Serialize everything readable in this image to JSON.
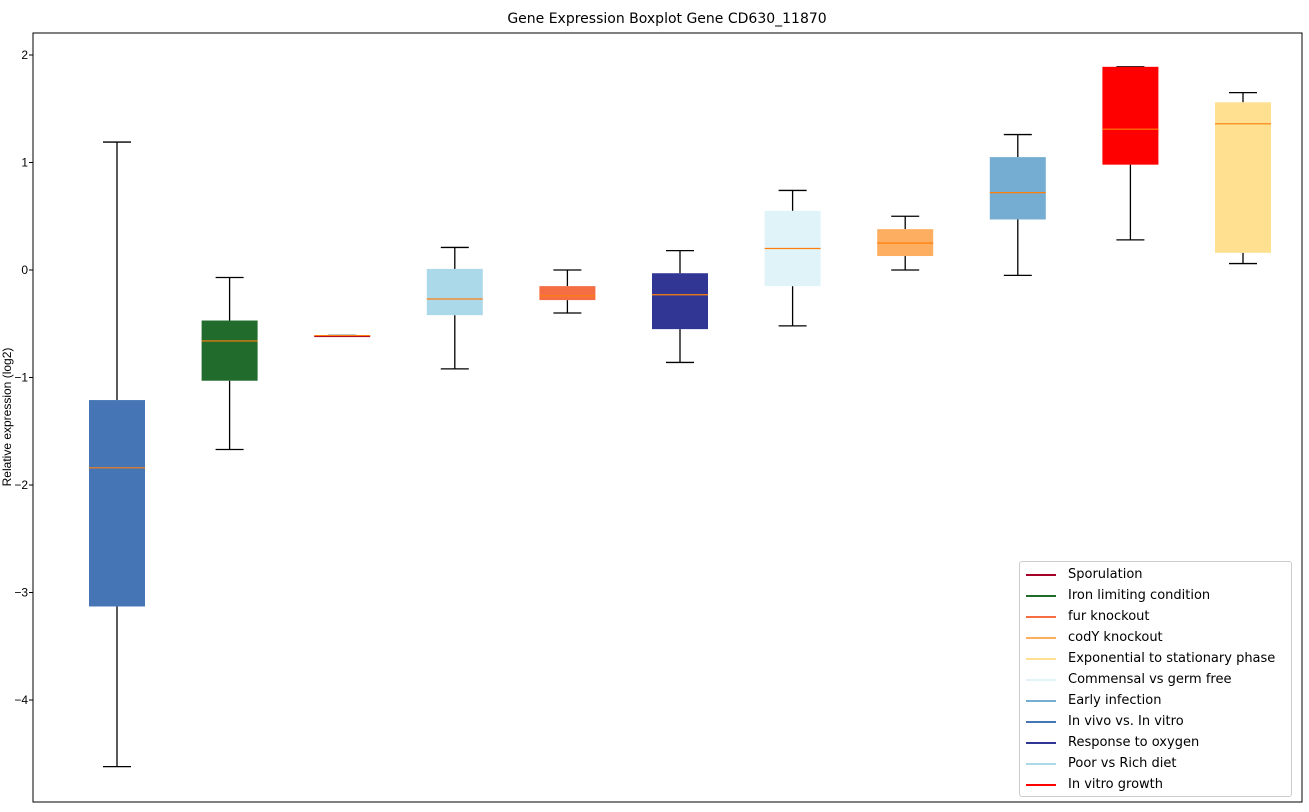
{
  "chart_data": {
    "type": "boxplot",
    "title": "Gene Expression Boxplot Gene CD630_11870",
    "xlabel": "",
    "ylabel": "Relative expression (log2)",
    "ylim": [
      -4.95,
      2.2
    ],
    "yticks": [
      2,
      1,
      0,
      -1,
      -2,
      -3,
      -4
    ],
    "ytick_labels": [
      "2",
      "1",
      "0",
      "−1",
      "−2",
      "−3",
      "−4"
    ],
    "grid": false,
    "legend_placement": "lower-right",
    "boxes": [
      {
        "name": "In vivo vs. In vitro",
        "color": "#4575b4",
        "min": -4.62,
        "q1": -3.13,
        "median": -1.84,
        "q3": -1.21,
        "max": 1.19
      },
      {
        "name": "Iron limiting condition",
        "color": "#216b2c",
        "min": -1.67,
        "q1": -1.03,
        "median": -0.66,
        "q3": -0.47,
        "max": -0.07
      },
      {
        "name": "Sporulation",
        "color": "#a50026",
        "min": -0.61,
        "q1": -0.61,
        "median": -0.61,
        "q3": -0.61,
        "max": -0.61
      },
      {
        "name": "Poor vs Rich diet",
        "color": "#abd9e9",
        "min": -0.92,
        "q1": -0.42,
        "median": -0.27,
        "q3": 0.01,
        "max": 0.21
      },
      {
        "name": "fur knockout",
        "color": "#f46d43",
        "min": -0.4,
        "q1": -0.28,
        "median": -0.24,
        "q3": -0.15,
        "max": 0.0
      },
      {
        "name": "Response to oxygen",
        "color": "#313695",
        "min": -0.86,
        "q1": -0.55,
        "median": -0.23,
        "q3": -0.03,
        "max": 0.18
      },
      {
        "name": "Commensal vs germ free",
        "color": "#e0f3f8",
        "min": -0.52,
        "q1": -0.15,
        "median": 0.2,
        "q3": 0.55,
        "max": 0.74
      },
      {
        "name": "codY knockout",
        "color": "#fdae61",
        "min": 0.0,
        "q1": 0.13,
        "median": 0.25,
        "q3": 0.38,
        "max": 0.5
      },
      {
        "name": "Early infection",
        "color": "#74add1",
        "min": -0.05,
        "q1": 0.47,
        "median": 0.72,
        "q3": 1.05,
        "max": 1.26
      },
      {
        "name": "In vitro growth",
        "color": "#ff0000",
        "min": 0.28,
        "q1": 0.98,
        "median": 1.31,
        "q3": 1.89,
        "max": 1.89
      },
      {
        "name": "Exponential to stationary phase",
        "color": "#fee090",
        "min": 0.06,
        "q1": 0.16,
        "median": 1.36,
        "q3": 1.56,
        "max": 1.65
      }
    ],
    "median_color": "#ff7f0e",
    "legend": [
      {
        "label": "Sporulation",
        "color": "#a50026"
      },
      {
        "label": "Iron limiting condition",
        "color": "#216b2c"
      },
      {
        "label": "fur knockout",
        "color": "#f46d43"
      },
      {
        "label": "codY knockout",
        "color": "#fdae61"
      },
      {
        "label": "Exponential to stationary phase",
        "color": "#fee090"
      },
      {
        "label": "Commensal vs germ free",
        "color": "#e0f3f8"
      },
      {
        "label": "Early infection",
        "color": "#74add1"
      },
      {
        "label": "In vivo vs. In vitro",
        "color": "#4575b4"
      },
      {
        "label": "Response to oxygen",
        "color": "#313695"
      },
      {
        "label": "Poor vs Rich diet",
        "color": "#abd9e9"
      },
      {
        "label": "In vitro growth",
        "color": "#ff0000"
      }
    ]
  }
}
